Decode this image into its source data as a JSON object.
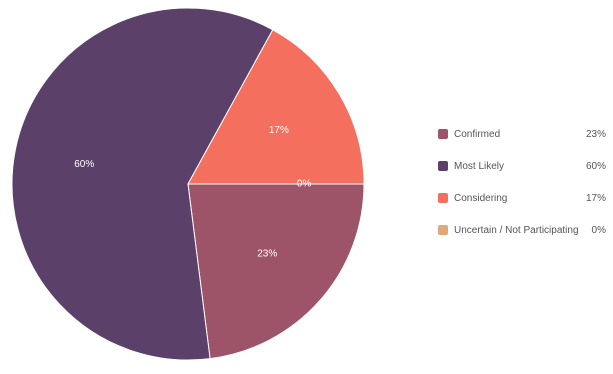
{
  "chart_data": {
    "type": "pie",
    "start_angle_deg": -90,
    "direction": "clockwise",
    "legend_position": "right",
    "slices": [
      {
        "label": "Confirmed",
        "value": 23,
        "display": "23%",
        "color": "#9e5468"
      },
      {
        "label": "Most Likely",
        "value": 60,
        "display": "60%",
        "color": "#5b4169"
      },
      {
        "label": "Considering",
        "value": 17,
        "display": "17%",
        "color": "#f46f5d"
      },
      {
        "label": "Uncertain / Not Participating",
        "value": 0,
        "display": "0%",
        "color": "#e0a878"
      }
    ]
  }
}
